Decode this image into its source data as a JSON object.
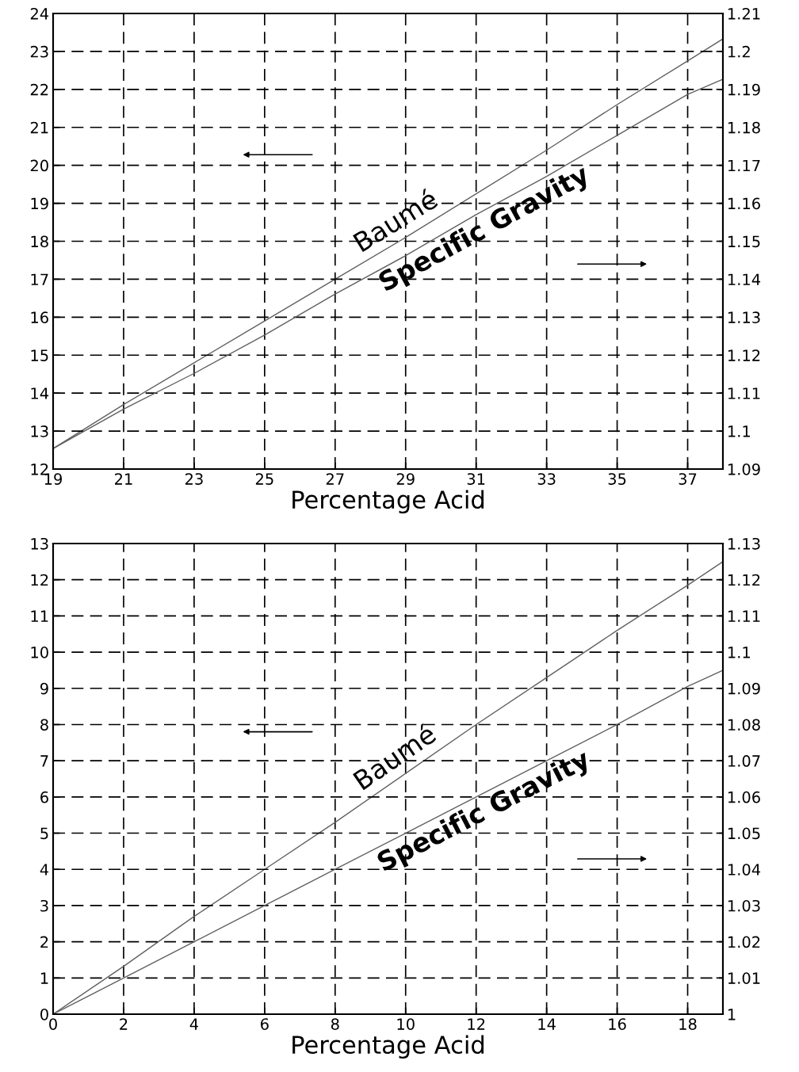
{
  "chart_data": [
    {
      "type": "line",
      "xlabel": "Percentage Acid",
      "xlim": [
        19,
        38
      ],
      "xticks": [
        19,
        21,
        23,
        25,
        27,
        29,
        31,
        33,
        35,
        37
      ],
      "ylim": [
        12,
        24
      ],
      "yticks": [
        12,
        13,
        14,
        15,
        16,
        17,
        18,
        19,
        20,
        21,
        22,
        23,
        24
      ],
      "y2lim": [
        1.09,
        1.21
      ],
      "y2ticks": [
        {
          "value": 1.09,
          "label": "1.09"
        },
        {
          "value": 1.1,
          "label": "1.1"
        },
        {
          "value": 1.11,
          "label": "1.11"
        },
        {
          "value": 1.12,
          "label": "1.12"
        },
        {
          "value": 1.13,
          "label": "1.13"
        },
        {
          "value": 1.14,
          "label": "1.14"
        },
        {
          "value": 1.15,
          "label": "1.15"
        },
        {
          "value": 1.16,
          "label": "1.16"
        },
        {
          "value": 1.17,
          "label": "1.17"
        },
        {
          "value": 1.18,
          "label": "1.18"
        },
        {
          "value": 1.19,
          "label": "1.19"
        },
        {
          "value": 1.2,
          "label": "1.2"
        },
        {
          "value": 1.21,
          "label": "1.21"
        }
      ],
      "grid": true,
      "line_style": "solid",
      "marker": "none",
      "x": [
        19,
        21,
        23,
        25,
        27,
        29,
        31,
        33,
        35,
        37,
        38
      ],
      "series": [
        {
          "name": "Baumé",
          "color": "#606060",
          "axis": "y",
          "values": [
            12.54,
            13.7,
            14.8,
            15.9,
            17.0,
            18.1,
            19.25,
            20.4,
            21.6,
            22.75,
            23.33
          ]
        },
        {
          "name": "Specific Gravity",
          "color": "#606060",
          "axis": "y2",
          "values": [
            1.0954,
            1.1058,
            1.1152,
            1.1253,
            1.1361,
            1.1462,
            1.157,
            1.1671,
            1.1779,
            1.1887,
            1.1927
          ]
        }
      ]
    },
    {
      "type": "line",
      "xlabel": "Percentage Acid",
      "xlim": [
        0,
        19
      ],
      "xticks": [
        0,
        2,
        4,
        6,
        8,
        10,
        12,
        14,
        16,
        18
      ],
      "ylim": [
        0,
        13
      ],
      "yticks": [
        0,
        1,
        2,
        3,
        4,
        5,
        6,
        7,
        8,
        9,
        10,
        11,
        12,
        13
      ],
      "y2lim": [
        1.0,
        1.13
      ],
      "y2ticks": [
        {
          "value": 1.0,
          "label": "1"
        },
        {
          "value": 1.01,
          "label": "1.01"
        },
        {
          "value": 1.02,
          "label": "1.02"
        },
        {
          "value": 1.03,
          "label": "1.03"
        },
        {
          "value": 1.04,
          "label": "1.04"
        },
        {
          "value": 1.05,
          "label": "1.05"
        },
        {
          "value": 1.06,
          "label": "1.06"
        },
        {
          "value": 1.07,
          "label": "1.07"
        },
        {
          "value": 1.08,
          "label": "1.08"
        },
        {
          "value": 1.09,
          "label": "1.09"
        },
        {
          "value": 1.1,
          "label": "1.1"
        },
        {
          "value": 1.11,
          "label": "1.11"
        },
        {
          "value": 1.12,
          "label": "1.12"
        },
        {
          "value": 1.13,
          "label": "1.13"
        }
      ],
      "grid": true,
      "line_style": "solid",
      "marker": "none",
      "x": [
        0,
        2,
        4,
        6,
        8,
        10,
        12,
        14,
        16,
        18,
        19
      ],
      "series": [
        {
          "name": "Baumé",
          "color": "#606060",
          "axis": "y",
          "values": [
            0,
            1.32,
            2.7,
            4.0,
            5.3,
            6.65,
            8.0,
            9.3,
            10.6,
            11.85,
            12.5
          ]
        },
        {
          "name": "Specific Gravity",
          "color": "#606060",
          "axis": "y2",
          "values": [
            1.0,
            1.01,
            1.02,
            1.03,
            1.04,
            1.05,
            1.06,
            1.07,
            1.08,
            1.0905,
            1.095
          ]
        }
      ]
    }
  ]
}
